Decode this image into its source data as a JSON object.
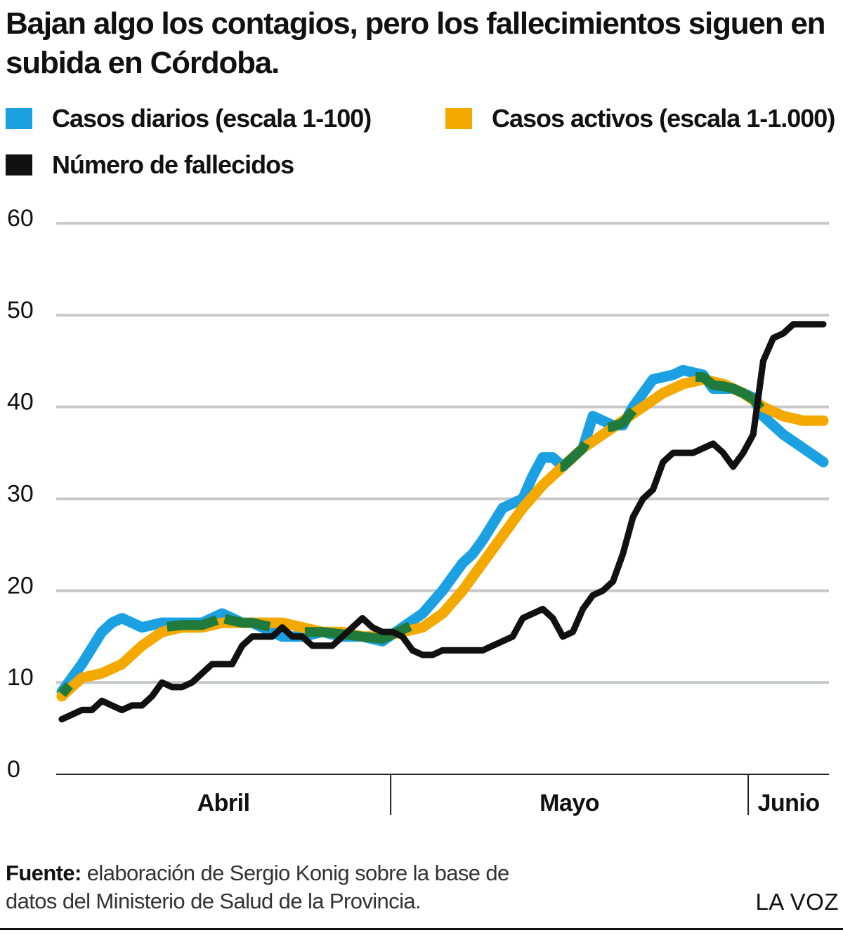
{
  "title": "Bajan algo los contagios, pero los fallecimientos siguen en subida en Córdoba.",
  "legend": [
    {
      "label": "Casos diarios (escala 1-100)",
      "color": "#1ba1e2"
    },
    {
      "label": "Casos activos (escala 1-1.000)",
      "color": "#f4a900"
    },
    {
      "label": "Número de fallecidos",
      "color": "#111111"
    }
  ],
  "footer": {
    "source_label": "Fuente:",
    "source_text": "elaboración de Sergio Konig sobre la base de datos del Ministerio de Salud de la Provincia.",
    "brand": "LA VOZ"
  },
  "chart_data": {
    "type": "line",
    "title": "Bajan algo los contagios, pero los fallecimientos siguen en subida en Córdoba.",
    "ylim": [
      0,
      60
    ],
    "yticks": [
      0,
      10,
      20,
      30,
      40,
      50,
      60
    ],
    "grid": true,
    "legend_position": "top",
    "x_months": [
      {
        "label": "Abril",
        "start": 0,
        "end": 29
      },
      {
        "label": "Mayo",
        "start": 29,
        "end": 60
      },
      {
        "label": "Junio",
        "start": 60,
        "end": 67
      }
    ],
    "overlap_color": "#1f7a3c",
    "series": [
      {
        "name": "Casos diarios (escala 1-100)",
        "color": "#1ba1e2",
        "x": [
          0,
          2,
          4,
          5,
          6,
          8,
          10,
          11,
          12,
          14,
          16,
          18,
          19,
          22,
          24,
          26,
          28,
          30,
          32,
          34,
          36,
          38,
          40,
          41,
          42,
          44,
          46,
          47,
          48,
          49,
          50,
          52,
          53,
          55,
          56,
          57,
          59,
          61,
          62,
          64,
          65,
          66,
          67,
          68,
          69,
          70,
          72,
          74,
          76
        ],
        "values": [
          9,
          12,
          15.5,
          16.5,
          17,
          16,
          16.5,
          16.5,
          16.5,
          16.5,
          17.5,
          16.5,
          16.5,
          15,
          15,
          15.5,
          15,
          15,
          14.5,
          16,
          17.5,
          20,
          23,
          24,
          25.5,
          29,
          30,
          32.5,
          34.5,
          34.5,
          33.5,
          35.5,
          39,
          38,
          38,
          40,
          43,
          43.5,
          44,
          43.5,
          42,
          42,
          42,
          41.5,
          41,
          39,
          37,
          35.5,
          34
        ]
      },
      {
        "name": "Casos activos (escala 1-1.000)",
        "color": "#f4a900",
        "x": [
          0,
          2,
          4,
          6,
          8,
          10,
          12,
          14,
          16,
          18,
          20,
          22,
          24,
          26,
          28,
          30,
          32,
          34,
          36,
          38,
          40,
          42,
          44,
          46,
          48,
          50,
          52,
          54,
          56,
          58,
          60,
          62,
          64,
          66,
          68,
          70,
          72,
          74,
          76
        ],
        "values": [
          8.5,
          10.5,
          11,
          12,
          14,
          15.5,
          16,
          16,
          16.5,
          16.5,
          16.5,
          16.5,
          16,
          15.5,
          15.5,
          15,
          15,
          15.5,
          16,
          17.5,
          20,
          23,
          26,
          29,
          31.5,
          33.5,
          35.5,
          37,
          38.5,
          40,
          41.5,
          42.5,
          43,
          42.5,
          41.5,
          40,
          39,
          38.5,
          38.5
        ]
      },
      {
        "name": "Número de fallecidos",
        "color": "#111111",
        "x": [
          0,
          1,
          2,
          3,
          4,
          5,
          6,
          7,
          8,
          9,
          10,
          11,
          12,
          13,
          14,
          15,
          16,
          17,
          18,
          19,
          20,
          21,
          22,
          23,
          24,
          25,
          26,
          27,
          28,
          29,
          30,
          31,
          32,
          33,
          34,
          35,
          36,
          37,
          38,
          39,
          40,
          41,
          42,
          43,
          44,
          45,
          46,
          47,
          48,
          49,
          50,
          51,
          52,
          53,
          54,
          55,
          56,
          57,
          58,
          59,
          60,
          61,
          62,
          63,
          64,
          65,
          66,
          67,
          68,
          69,
          70,
          71,
          72,
          73,
          74,
          75,
          76
        ],
        "values": [
          6,
          6.5,
          7,
          7,
          8,
          7.5,
          7,
          7.5,
          7.5,
          8.5,
          10,
          9.5,
          9.5,
          10,
          11,
          12,
          12,
          12,
          14,
          15,
          15,
          15,
          16,
          15,
          15,
          14,
          14,
          14,
          15,
          16,
          17,
          16,
          15.5,
          15.5,
          15,
          13.5,
          13,
          13,
          13.5,
          13.5,
          13.5,
          13.5,
          13.5,
          14,
          14.5,
          15,
          17,
          17.5,
          18,
          17,
          15,
          15.5,
          18,
          19.5,
          20,
          21,
          24,
          28,
          30,
          31,
          34,
          35,
          35,
          35,
          35.5,
          36,
          35,
          33.5,
          35,
          37,
          45,
          47.5,
          48,
          49,
          49,
          49,
          49
        ]
      }
    ]
  }
}
